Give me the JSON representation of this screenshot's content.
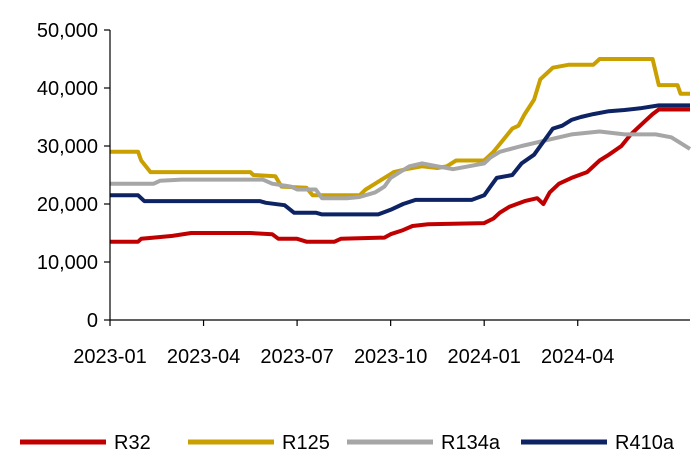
{
  "chart_data": {
    "type": "line",
    "title": "",
    "xlabel": "",
    "ylabel": "",
    "ylim": [
      0,
      50000
    ],
    "y_ticks": [
      {
        "value": 0,
        "label": "0"
      },
      {
        "value": 10000,
        "label": "10,000"
      },
      {
        "value": 20000,
        "label": "20,000"
      },
      {
        "value": 30000,
        "label": "30,000"
      },
      {
        "value": 40000,
        "label": "40,000"
      },
      {
        "value": 50000,
        "label": "50,000"
      }
    ],
    "x_start": "2023-01",
    "x_end": "2024-06",
    "x_ticks": [
      {
        "month": 0,
        "label": "2023-01"
      },
      {
        "month": 3,
        "label": "2023-04"
      },
      {
        "month": 6,
        "label": "2023-07"
      },
      {
        "month": 9,
        "label": "2023-10"
      },
      {
        "month": 12,
        "label": "2024-01"
      },
      {
        "month": 15,
        "label": "2024-04"
      }
    ],
    "x_unit": "months since 2023-01",
    "legend_position": "bottom",
    "series": [
      {
        "name": "R32",
        "color": "#C00000",
        "points": [
          [
            0,
            13500
          ],
          [
            0.9,
            13500
          ],
          [
            1.0,
            14000
          ],
          [
            1.4,
            14200
          ],
          [
            2.0,
            14500
          ],
          [
            2.6,
            15000
          ],
          [
            4.5,
            15000
          ],
          [
            5.2,
            14800
          ],
          [
            5.4,
            14000
          ],
          [
            6.0,
            14000
          ],
          [
            6.3,
            13500
          ],
          [
            7.2,
            13500
          ],
          [
            7.4,
            14000
          ],
          [
            8.8,
            14200
          ],
          [
            9.0,
            14800
          ],
          [
            9.4,
            15500
          ],
          [
            9.7,
            16200
          ],
          [
            10.2,
            16500
          ],
          [
            12.0,
            16700
          ],
          [
            12.3,
            17500
          ],
          [
            12.5,
            18500
          ],
          [
            12.8,
            19500
          ],
          [
            13.3,
            20500
          ],
          [
            13.7,
            21000
          ],
          [
            13.9,
            20000
          ],
          [
            14.1,
            22000
          ],
          [
            14.4,
            23500
          ],
          [
            14.8,
            24500
          ],
          [
            15.3,
            25500
          ],
          [
            15.7,
            27500
          ],
          [
            16.0,
            28500
          ],
          [
            16.4,
            30000
          ],
          [
            16.7,
            32000
          ],
          [
            17.1,
            34000
          ],
          [
            17.4,
            35500
          ],
          [
            17.6,
            36300
          ],
          [
            18.0,
            36300
          ],
          [
            18.6,
            36300
          ]
        ]
      },
      {
        "name": "R125",
        "color": "#C9A000",
        "points": [
          [
            0,
            29000
          ],
          [
            0.9,
            29000
          ],
          [
            1.0,
            27500
          ],
          [
            1.3,
            25500
          ],
          [
            4.5,
            25500
          ],
          [
            4.6,
            25000
          ],
          [
            5.3,
            24800
          ],
          [
            5.5,
            23000
          ],
          [
            6.3,
            22800
          ],
          [
            6.5,
            21500
          ],
          [
            7.5,
            21500
          ],
          [
            8.0,
            21500
          ],
          [
            8.2,
            22500
          ],
          [
            8.5,
            23500
          ],
          [
            8.8,
            24500
          ],
          [
            9.1,
            25500
          ],
          [
            9.5,
            26000
          ],
          [
            10.0,
            26500
          ],
          [
            10.5,
            26200
          ],
          [
            10.8,
            26500
          ],
          [
            11.1,
            27500
          ],
          [
            12.0,
            27500
          ],
          [
            12.3,
            29000
          ],
          [
            12.6,
            31000
          ],
          [
            12.9,
            33000
          ],
          [
            13.1,
            33500
          ],
          [
            13.3,
            35500
          ],
          [
            13.6,
            38000
          ],
          [
            13.8,
            41500
          ],
          [
            14.0,
            42500
          ],
          [
            14.2,
            43500
          ],
          [
            14.7,
            44000
          ],
          [
            15.5,
            44000
          ],
          [
            15.7,
            45000
          ],
          [
            17.4,
            45000
          ],
          [
            17.6,
            40500
          ],
          [
            18.2,
            40500
          ],
          [
            18.3,
            39000
          ],
          [
            18.6,
            39000
          ]
        ]
      },
      {
        "name": "R134a",
        "color": "#A6A6A6",
        "points": [
          [
            0,
            23500
          ],
          [
            1.4,
            23500
          ],
          [
            1.6,
            24000
          ],
          [
            2.3,
            24200
          ],
          [
            4.9,
            24200
          ],
          [
            5.2,
            23500
          ],
          [
            5.8,
            23000
          ],
          [
            6.0,
            22500
          ],
          [
            6.6,
            22500
          ],
          [
            6.8,
            21000
          ],
          [
            7.6,
            21000
          ],
          [
            8.0,
            21200
          ],
          [
            8.5,
            22000
          ],
          [
            8.8,
            23000
          ],
          [
            9.0,
            24500
          ],
          [
            9.3,
            25500
          ],
          [
            9.6,
            26500
          ],
          [
            10.0,
            27000
          ],
          [
            10.5,
            26500
          ],
          [
            11.0,
            26000
          ],
          [
            11.5,
            26500
          ],
          [
            12.0,
            27000
          ],
          [
            12.2,
            28000
          ],
          [
            12.5,
            29000
          ],
          [
            13.2,
            30000
          ],
          [
            14.0,
            31000
          ],
          [
            14.8,
            32000
          ],
          [
            15.7,
            32500
          ],
          [
            16.5,
            32000
          ],
          [
            17.5,
            32000
          ],
          [
            18.0,
            31500
          ],
          [
            18.3,
            30500
          ],
          [
            18.6,
            29500
          ]
        ]
      },
      {
        "name": "R410a",
        "color": "#0D2364",
        "points": [
          [
            0,
            21500
          ],
          [
            0.9,
            21500
          ],
          [
            1.1,
            20500
          ],
          [
            4.8,
            20500
          ],
          [
            5.0,
            20200
          ],
          [
            5.6,
            19800
          ],
          [
            5.9,
            18500
          ],
          [
            6.6,
            18500
          ],
          [
            6.8,
            18200
          ],
          [
            8.6,
            18200
          ],
          [
            9.0,
            19000
          ],
          [
            9.4,
            20000
          ],
          [
            9.8,
            20700
          ],
          [
            11.6,
            20700
          ],
          [
            12.0,
            21500
          ],
          [
            12.2,
            23000
          ],
          [
            12.4,
            24500
          ],
          [
            12.9,
            25000
          ],
          [
            13.2,
            27000
          ],
          [
            13.6,
            28500
          ],
          [
            13.8,
            30000
          ],
          [
            14.0,
            31500
          ],
          [
            14.2,
            33000
          ],
          [
            14.5,
            33500
          ],
          [
            14.8,
            34500
          ],
          [
            15.1,
            35000
          ],
          [
            15.5,
            35500
          ],
          [
            16.0,
            36000
          ],
          [
            16.5,
            36200
          ],
          [
            17.0,
            36500
          ],
          [
            17.6,
            37000
          ],
          [
            18.6,
            37000
          ]
        ]
      }
    ]
  }
}
